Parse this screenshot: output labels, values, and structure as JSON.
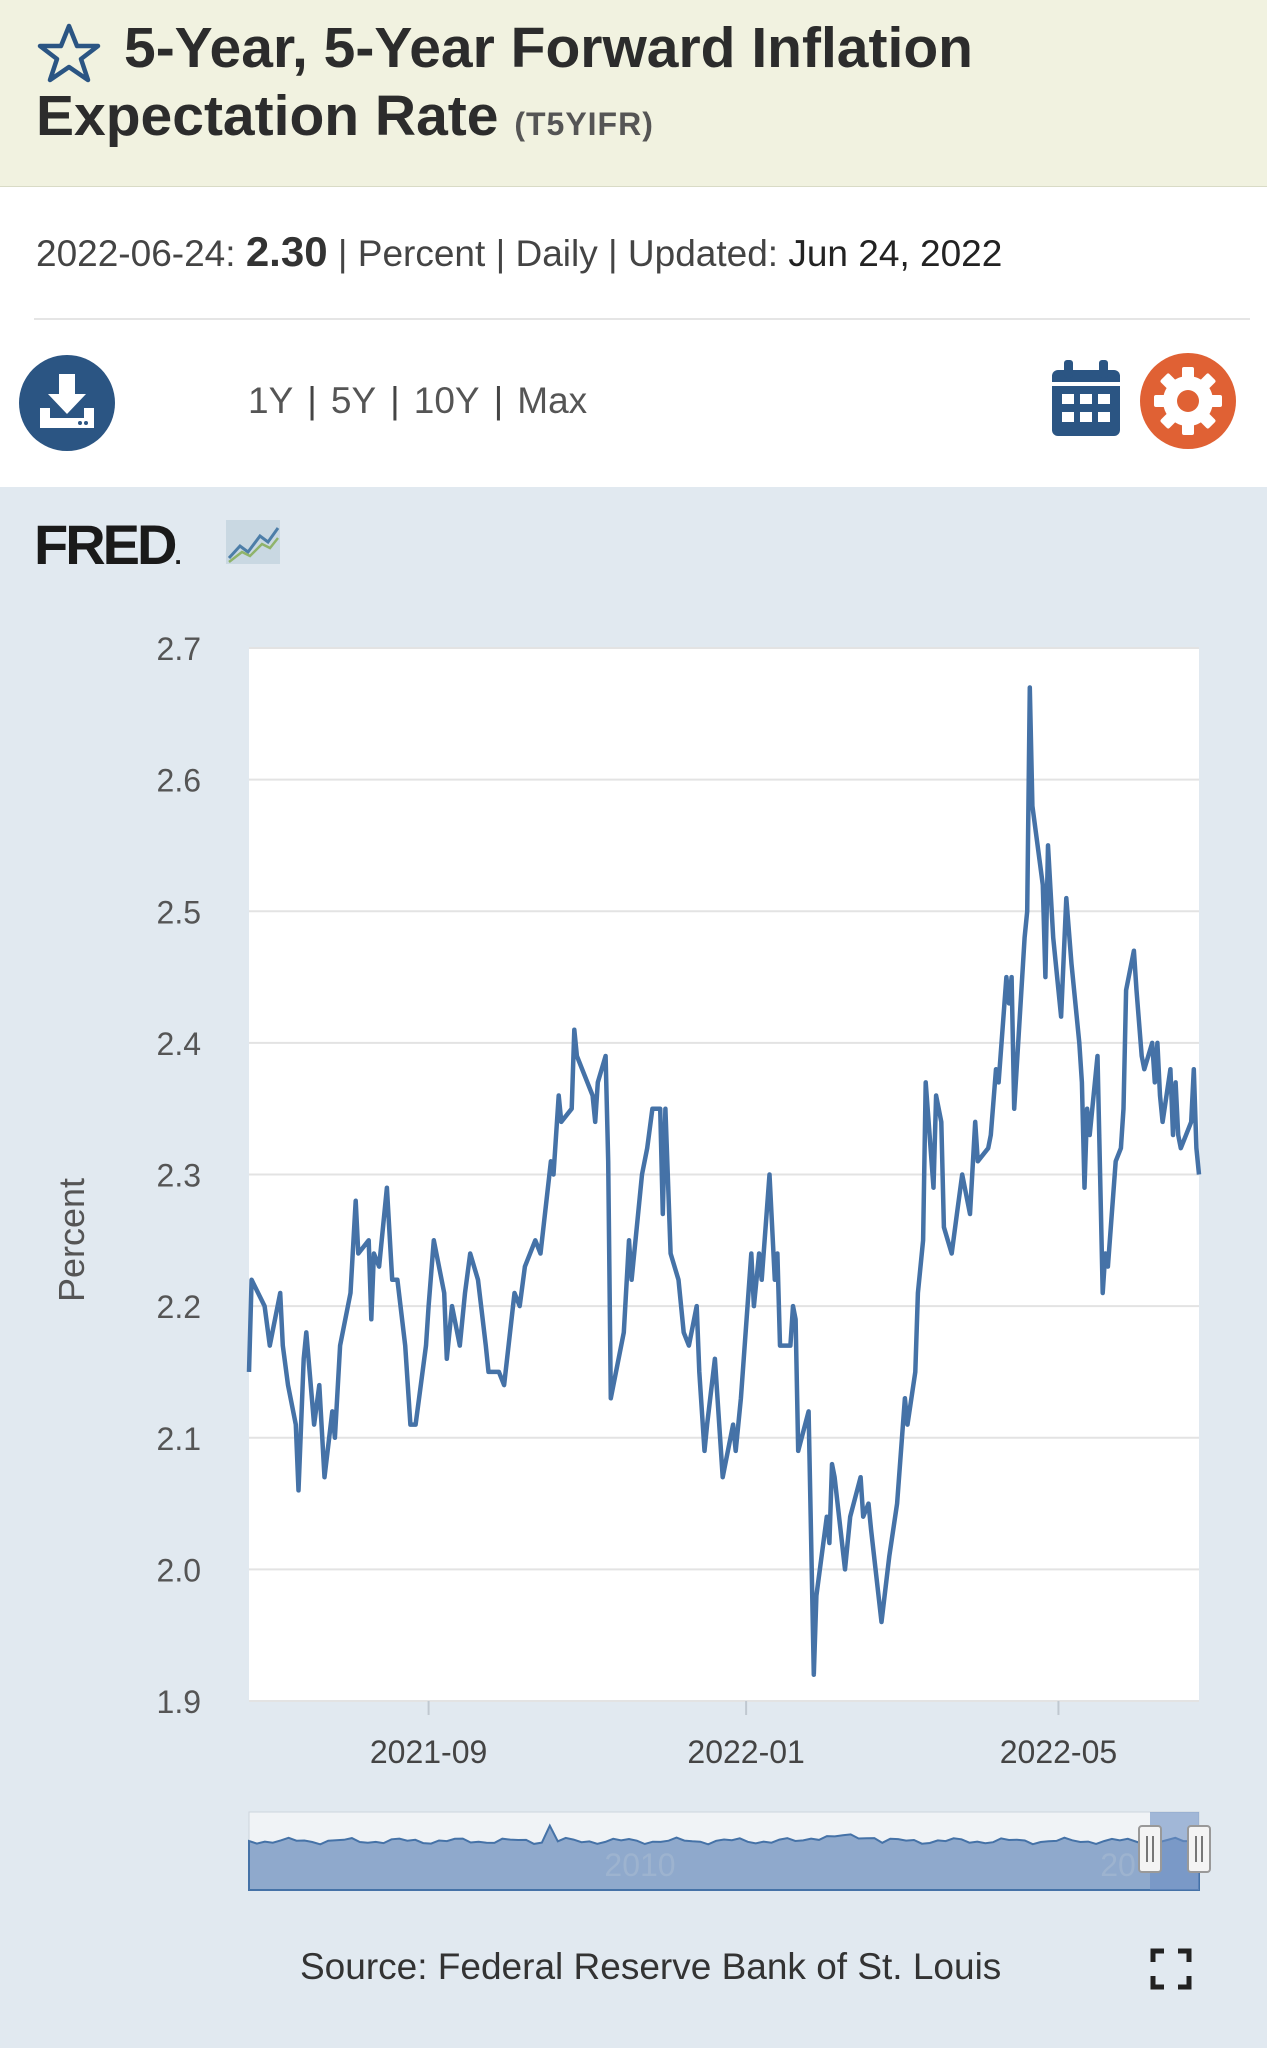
{
  "header": {
    "title": "5-Year, 5-Year Forward Inflation Expectation Rate",
    "series_id": "(T5YIFR)"
  },
  "meta": {
    "date": "2022-06-24:",
    "value": "2.30",
    "units": "Percent",
    "frequency": "Daily",
    "updated_label": "Updated:",
    "updated_date": "Jun 24, 2022"
  },
  "ranges": {
    "r1": "1Y",
    "r2": "5Y",
    "r3": "10Y",
    "r4": "Max"
  },
  "brand": {
    "logo_text": "FRED",
    "logo_mark": "."
  },
  "source": "Source: Federal Reserve Bank of St. Louis",
  "colors": {
    "line": "#4572a7",
    "accent_blue": "#2b5583",
    "gear": "#e06134",
    "panel": "#e1e9f0"
  },
  "chart_data": {
    "type": "line",
    "title": "5-Year, 5-Year Forward Inflation Expectation Rate",
    "ylabel": "Percent",
    "xlabel": "",
    "ylim": [
      1.9,
      2.7
    ],
    "yticks": [
      "1.9",
      "2.0",
      "2.1",
      "2.2",
      "2.3",
      "2.4",
      "2.5",
      "2.6",
      "2.7"
    ],
    "xrange": [
      "2021-06-24",
      "2022-06-24"
    ],
    "xticks": [
      {
        "date": "2021-09-01",
        "label": "2021-09"
      },
      {
        "date": "2022-01-01",
        "label": "2022-01"
      },
      {
        "date": "2022-05-01",
        "label": "2022-05"
      }
    ],
    "navigator_labels": [
      "2010",
      "20"
    ],
    "series": [
      {
        "name": "T5YIFR",
        "points": [
          [
            "2021-06-24",
            2.15
          ],
          [
            "2021-06-25",
            2.22
          ],
          [
            "2021-06-30",
            2.2
          ],
          [
            "2021-07-02",
            2.17
          ],
          [
            "2021-07-06",
            2.21
          ],
          [
            "2021-07-07",
            2.17
          ],
          [
            "2021-07-09",
            2.14
          ],
          [
            "2021-07-12",
            2.11
          ],
          [
            "2021-07-13",
            2.06
          ],
          [
            "2021-07-15",
            2.16
          ],
          [
            "2021-07-16",
            2.18
          ],
          [
            "2021-07-19",
            2.11
          ],
          [
            "2021-07-21",
            2.14
          ],
          [
            "2021-07-23",
            2.07
          ],
          [
            "2021-07-26",
            2.12
          ],
          [
            "2021-07-27",
            2.1
          ],
          [
            "2021-07-29",
            2.17
          ],
          [
            "2021-08-02",
            2.21
          ],
          [
            "2021-08-04",
            2.28
          ],
          [
            "2021-08-05",
            2.24
          ],
          [
            "2021-08-09",
            2.25
          ],
          [
            "2021-08-10",
            2.19
          ],
          [
            "2021-08-11",
            2.24
          ],
          [
            "2021-08-13",
            2.23
          ],
          [
            "2021-08-16",
            2.29
          ],
          [
            "2021-08-18",
            2.22
          ],
          [
            "2021-08-20",
            2.22
          ],
          [
            "2021-08-23",
            2.17
          ],
          [
            "2021-08-24",
            2.14
          ],
          [
            "2021-08-25",
            2.11
          ],
          [
            "2021-08-27",
            2.11
          ],
          [
            "2021-08-31",
            2.17
          ],
          [
            "2021-09-01",
            2.2
          ],
          [
            "2021-09-03",
            2.25
          ],
          [
            "2021-09-07",
            2.21
          ],
          [
            "2021-09-08",
            2.16
          ],
          [
            "2021-09-10",
            2.2
          ],
          [
            "2021-09-13",
            2.17
          ],
          [
            "2021-09-15",
            2.21
          ],
          [
            "2021-09-17",
            2.24
          ],
          [
            "2021-09-20",
            2.22
          ],
          [
            "2021-09-23",
            2.17
          ],
          [
            "2021-09-24",
            2.15
          ],
          [
            "2021-09-28",
            2.15
          ],
          [
            "2021-09-30",
            2.14
          ],
          [
            "2021-10-04",
            2.21
          ],
          [
            "2021-10-06",
            2.2
          ],
          [
            "2021-10-08",
            2.23
          ],
          [
            "2021-10-12",
            2.25
          ],
          [
            "2021-10-14",
            2.24
          ],
          [
            "2021-10-18",
            2.31
          ],
          [
            "2021-10-19",
            2.3
          ],
          [
            "2021-10-21",
            2.36
          ],
          [
            "2021-10-22",
            2.34
          ],
          [
            "2021-10-26",
            2.35
          ],
          [
            "2021-10-27",
            2.41
          ],
          [
            "2021-10-28",
            2.39
          ],
          [
            "2021-11-01",
            2.37
          ],
          [
            "2021-11-03",
            2.36
          ],
          [
            "2021-11-04",
            2.34
          ],
          [
            "2021-11-05",
            2.37
          ],
          [
            "2021-11-08",
            2.39
          ],
          [
            "2021-11-09",
            2.31
          ],
          [
            "2021-11-10",
            2.13
          ],
          [
            "2021-11-12",
            2.15
          ],
          [
            "2021-11-15",
            2.18
          ],
          [
            "2021-11-17",
            2.25
          ],
          [
            "2021-11-18",
            2.22
          ],
          [
            "2021-11-22",
            2.3
          ],
          [
            "2021-11-24",
            2.32
          ],
          [
            "2021-11-26",
            2.35
          ],
          [
            "2021-11-29",
            2.35
          ],
          [
            "2021-11-30",
            2.27
          ],
          [
            "2021-12-01",
            2.35
          ],
          [
            "2021-12-03",
            2.24
          ],
          [
            "2021-12-06",
            2.22
          ],
          [
            "2021-12-08",
            2.18
          ],
          [
            "2021-12-10",
            2.17
          ],
          [
            "2021-12-13",
            2.2
          ],
          [
            "2021-12-14",
            2.15
          ],
          [
            "2021-12-16",
            2.09
          ],
          [
            "2021-12-17",
            2.11
          ],
          [
            "2021-12-20",
            2.16
          ],
          [
            "2021-12-22",
            2.1
          ],
          [
            "2021-12-23",
            2.07
          ],
          [
            "2021-12-27",
            2.11
          ],
          [
            "2021-12-28",
            2.09
          ],
          [
            "2021-12-30",
            2.13
          ],
          [
            "2022-01-03",
            2.24
          ],
          [
            "2022-01-04",
            2.2
          ],
          [
            "2022-01-06",
            2.24
          ],
          [
            "2022-01-07",
            2.22
          ],
          [
            "2022-01-10",
            2.3
          ],
          [
            "2022-01-12",
            2.22
          ],
          [
            "2022-01-13",
            2.24
          ],
          [
            "2022-01-14",
            2.17
          ],
          [
            "2022-01-18",
            2.17
          ],
          [
            "2022-01-19",
            2.2
          ],
          [
            "2022-01-20",
            2.19
          ],
          [
            "2022-01-21",
            2.09
          ],
          [
            "2022-01-25",
            2.12
          ],
          [
            "2022-01-27",
            1.92
          ],
          [
            "2022-01-28",
            1.98
          ],
          [
            "2022-02-01",
            2.04
          ],
          [
            "2022-02-02",
            2.02
          ],
          [
            "2022-02-03",
            2.08
          ],
          [
            "2022-02-04",
            2.07
          ],
          [
            "2022-02-08",
            2.0
          ],
          [
            "2022-02-10",
            2.04
          ],
          [
            "2022-02-14",
            2.07
          ],
          [
            "2022-02-15",
            2.04
          ],
          [
            "2022-02-17",
            2.05
          ],
          [
            "2022-02-18",
            2.03
          ],
          [
            "2022-02-22",
            1.96
          ],
          [
            "2022-02-25",
            2.01
          ],
          [
            "2022-02-28",
            2.05
          ],
          [
            "2022-03-03",
            2.13
          ],
          [
            "2022-03-04",
            2.11
          ],
          [
            "2022-03-07",
            2.15
          ],
          [
            "2022-03-08",
            2.21
          ],
          [
            "2022-03-10",
            2.25
          ],
          [
            "2022-03-11",
            2.37
          ],
          [
            "2022-03-14",
            2.29
          ],
          [
            "2022-03-15",
            2.36
          ],
          [
            "2022-03-17",
            2.34
          ],
          [
            "2022-03-18",
            2.26
          ],
          [
            "2022-03-21",
            2.24
          ],
          [
            "2022-03-23",
            2.27
          ],
          [
            "2022-03-25",
            2.3
          ],
          [
            "2022-03-28",
            2.27
          ],
          [
            "2022-03-30",
            2.34
          ],
          [
            "2022-03-31",
            2.31
          ],
          [
            "2022-04-04",
            2.32
          ],
          [
            "2022-04-05",
            2.33
          ],
          [
            "2022-04-07",
            2.38
          ],
          [
            "2022-04-08",
            2.37
          ],
          [
            "2022-04-11",
            2.45
          ],
          [
            "2022-04-12",
            2.43
          ],
          [
            "2022-04-13",
            2.45
          ],
          [
            "2022-04-14",
            2.35
          ],
          [
            "2022-04-18",
            2.48
          ],
          [
            "2022-04-19",
            2.5
          ],
          [
            "2022-04-20",
            2.67
          ],
          [
            "2022-04-21",
            2.58
          ],
          [
            "2022-04-25",
            2.52
          ],
          [
            "2022-04-26",
            2.45
          ],
          [
            "2022-04-27",
            2.55
          ],
          [
            "2022-04-29",
            2.48
          ],
          [
            "2022-05-02",
            2.42
          ],
          [
            "2022-05-04",
            2.51
          ],
          [
            "2022-05-06",
            2.46
          ],
          [
            "2022-05-09",
            2.4
          ],
          [
            "2022-05-10",
            2.37
          ],
          [
            "2022-05-11",
            2.29
          ],
          [
            "2022-05-12",
            2.35
          ],
          [
            "2022-05-13",
            2.33
          ],
          [
            "2022-05-16",
            2.39
          ],
          [
            "2022-05-17",
            2.3
          ],
          [
            "2022-05-18",
            2.21
          ],
          [
            "2022-05-19",
            2.24
          ],
          [
            "2022-05-20",
            2.23
          ],
          [
            "2022-05-23",
            2.31
          ],
          [
            "2022-05-25",
            2.32
          ],
          [
            "2022-05-26",
            2.35
          ],
          [
            "2022-05-27",
            2.44
          ],
          [
            "2022-05-30",
            2.47
          ],
          [
            "2022-05-31",
            2.44
          ],
          [
            "2022-06-02",
            2.39
          ],
          [
            "2022-06-03",
            2.38
          ],
          [
            "2022-06-06",
            2.4
          ],
          [
            "2022-06-07",
            2.37
          ],
          [
            "2022-06-08",
            2.4
          ],
          [
            "2022-06-09",
            2.36
          ],
          [
            "2022-06-10",
            2.34
          ],
          [
            "2022-06-13",
            2.38
          ],
          [
            "2022-06-14",
            2.33
          ],
          [
            "2022-06-15",
            2.37
          ],
          [
            "2022-06-16",
            2.33
          ],
          [
            "2022-06-17",
            2.32
          ],
          [
            "2022-06-21",
            2.34
          ],
          [
            "2022-06-22",
            2.38
          ],
          [
            "2022-06-23",
            2.32
          ],
          [
            "2022-06-24",
            2.3
          ]
        ]
      }
    ]
  }
}
